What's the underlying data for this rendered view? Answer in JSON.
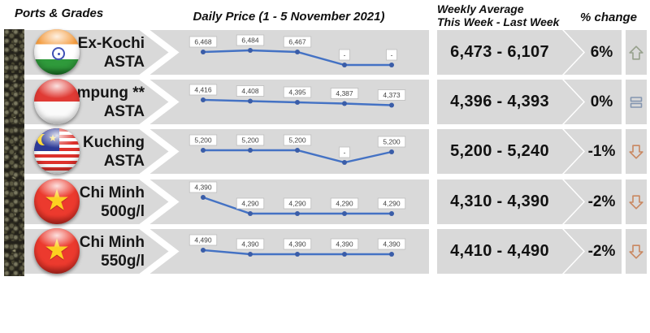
{
  "header": {
    "ports_grades": "Ports & Grades",
    "daily_price": "Daily Price (1 - 5 November 2021)",
    "weekly_average": "Weekly Average\nThis Week - Last Week",
    "pct_change": "% change"
  },
  "colors": {
    "band": "#d9d9d9",
    "line": "#4472c4",
    "marker": "#3a5da8",
    "label_border": "#bdbdbd",
    "up": "#96a08c",
    "equal": "#8496b0",
    "down": "#c98760"
  },
  "rows": [
    {
      "port": "Ex-Kochi",
      "grade": "ASTA",
      "flag": "india",
      "daily_labels": [
        "6,468",
        "6,484",
        "6,467",
        "-",
        "-"
      ],
      "spark_y": [
        27,
        25,
        27,
        43,
        43
      ],
      "weekly_average": "6,473 - 6,107",
      "pct_change": "6%",
      "trend": "up"
    },
    {
      "port": "Lampung **",
      "grade": "ASTA",
      "flag": "indonesia",
      "daily_labels": [
        "4,416",
        "4,408",
        "4,395",
        "4,387",
        "4,373"
      ],
      "spark_y": [
        25,
        26.5,
        28,
        29.5,
        31.5
      ],
      "weekly_average": "4,396 - 4,393",
      "pct_change": "0%",
      "trend": "equal"
    },
    {
      "port": "Kuching",
      "grade": "ASTA",
      "flag": "malaysia",
      "daily_labels": [
        "5,200",
        "5,200",
        "5,200",
        "-",
        "5,200"
      ],
      "spark_y": [
        26,
        26,
        26,
        41,
        28
      ],
      "weekly_average": "5,200 - 5,240",
      "pct_change": "-1%",
      "trend": "down"
    },
    {
      "port": "Ho Chi Minh",
      "grade": "500g/l",
      "flag": "vietnam",
      "daily_labels": [
        "4,390",
        "4,290",
        "4,290",
        "4,290",
        "4,290"
      ],
      "spark_y": [
        22,
        42,
        42,
        42,
        42
      ],
      "weekly_average": "4,310 - 4,390",
      "pct_change": "-2%",
      "trend": "down"
    },
    {
      "port": "Ho Chi Minh",
      "grade": "550g/l",
      "flag": "vietnam",
      "daily_labels": [
        "4,490",
        "4,390",
        "4,390",
        "4,390",
        "4,390"
      ],
      "spark_y": [
        26,
        31,
        31,
        31,
        31
      ],
      "weekly_average": "4,410 - 4,490",
      "pct_change": "-2%",
      "trend": "down"
    }
  ],
  "chart_data": [
    {
      "type": "line",
      "title": "Ex-Kochi ASTA daily price",
      "xlabel": "1 - 5 November 2021",
      "x": [
        1,
        2,
        3,
        4,
        5
      ],
      "values": [
        6468,
        6484,
        6467,
        null,
        null
      ],
      "weekly_avg_this_week": 6473,
      "weekly_avg_last_week": 6107,
      "pct_change": 6
    },
    {
      "type": "line",
      "title": "Lampung ** ASTA daily price",
      "xlabel": "1 - 5 November 2021",
      "x": [
        1,
        2,
        3,
        4,
        5
      ],
      "values": [
        4416,
        4408,
        4395,
        4387,
        4373
      ],
      "weekly_avg_this_week": 4396,
      "weekly_avg_last_week": 4393,
      "pct_change": 0
    },
    {
      "type": "line",
      "title": "Kuching ASTA daily price",
      "xlabel": "1 - 5 November 2021",
      "x": [
        1,
        2,
        3,
        4,
        5
      ],
      "values": [
        5200,
        5200,
        5200,
        null,
        5200
      ],
      "weekly_avg_this_week": 5200,
      "weekly_avg_last_week": 5240,
      "pct_change": -1
    },
    {
      "type": "line",
      "title": "Ho Chi Minh 500g/l daily price",
      "xlabel": "1 - 5 November 2021",
      "x": [
        1,
        2,
        3,
        4,
        5
      ],
      "values": [
        4390,
        4290,
        4290,
        4290,
        4290
      ],
      "weekly_avg_this_week": 4310,
      "weekly_avg_last_week": 4390,
      "pct_change": -2
    },
    {
      "type": "line",
      "title": "Ho Chi Minh 550g/l daily price",
      "xlabel": "1 - 5 November 2021",
      "x": [
        1,
        2,
        3,
        4,
        5
      ],
      "values": [
        4490,
        4390,
        4390,
        4390,
        4390
      ],
      "weekly_avg_this_week": 4410,
      "weekly_avg_last_week": 4490,
      "pct_change": -2
    }
  ]
}
